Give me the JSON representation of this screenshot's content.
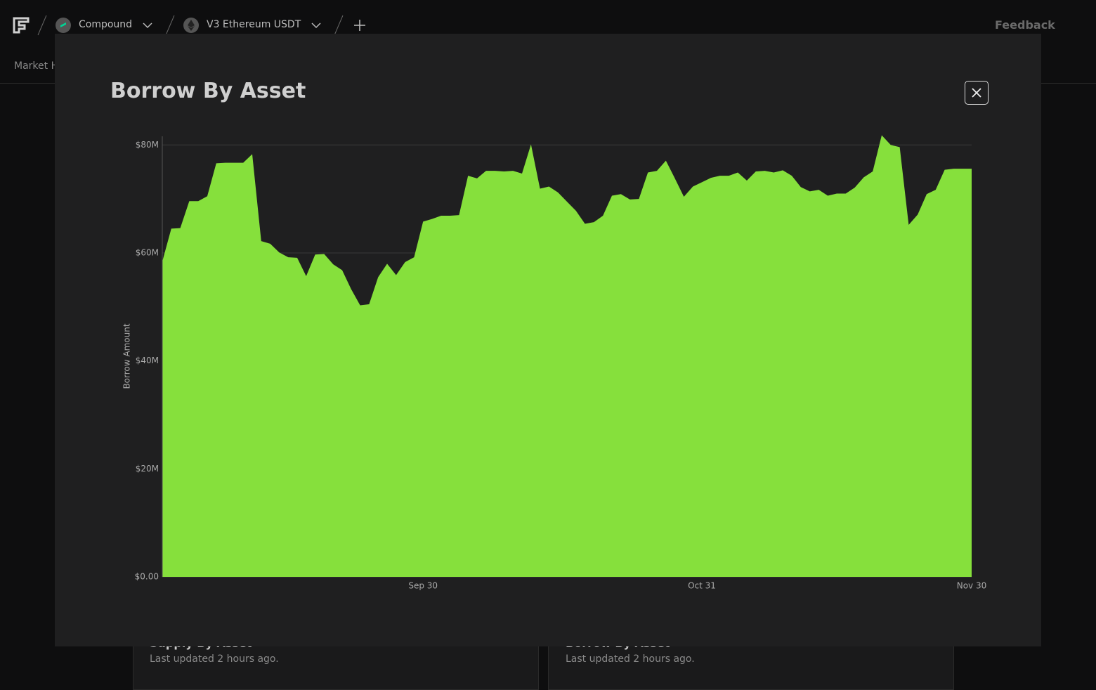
{
  "nav": {
    "protocol": "Compound",
    "market": "V3 Ethereum USDT",
    "feedback": "Feedback",
    "tab": "Market History"
  },
  "cards": [
    {
      "title": "Supply By Asset",
      "updated": "Last updated 2 hours ago."
    },
    {
      "title": "Borrow By Asset",
      "updated": "Last updated 2 hours ago."
    }
  ],
  "modal": {
    "title": "Borrow By Asset"
  },
  "chart_data": {
    "type": "area",
    "y_label": "Borrow Amount",
    "categories": [
      null,
      null,
      null,
      null,
      null,
      null,
      null,
      null,
      null,
      null,
      null,
      null,
      null,
      null,
      null,
      null,
      null,
      null,
      null,
      null,
      null,
      null,
      null,
      null,
      null,
      null,
      null,
      null,
      null,
      "Sep 30",
      null,
      null,
      null,
      null,
      null,
      null,
      null,
      null,
      null,
      null,
      null,
      null,
      null,
      null,
      null,
      null,
      null,
      null,
      null,
      null,
      null,
      null,
      null,
      null,
      null,
      null,
      null,
      null,
      null,
      null,
      "Oct 31",
      null,
      null,
      null,
      null,
      null,
      null,
      null,
      null,
      null,
      null,
      null,
      null,
      null,
      null,
      null,
      null,
      null,
      null,
      null,
      null,
      null,
      null,
      null,
      null,
      null,
      null,
      null,
      null,
      null,
      "Nov 30"
    ],
    "values": [
      58400000,
      64500000,
      64600000,
      69600000,
      69600000,
      70500000,
      76600000,
      76700000,
      76700000,
      76700000,
      78300000,
      62200000,
      61700000,
      60100000,
      59200000,
      59100000,
      55700000,
      59700000,
      59800000,
      57900000,
      56800000,
      53300000,
      50300000,
      50500000,
      55500000,
      58000000,
      55900000,
      58300000,
      59200000,
      65800000,
      66300000,
      66900000,
      66900000,
      67000000,
      74300000,
      73800000,
      75200000,
      75200000,
      75100000,
      75200000,
      74700000,
      80100000,
      71900000,
      72300000,
      71200000,
      69500000,
      67800000,
      65400000,
      65700000,
      66900000,
      70600000,
      70900000,
      69900000,
      70000000,
      74900000,
      75200000,
      77100000,
      73800000,
      70400000,
      72300000,
      73100000,
      73900000,
      74300000,
      74300000,
      74900000,
      73400000,
      75100000,
      75200000,
      74900000,
      75300000,
      74300000,
      72200000,
      71400000,
      71700000,
      70600000,
      71000000,
      71000000,
      72100000,
      74000000,
      75100000,
      81800000,
      80000000,
      79600000,
      65200000,
      67100000,
      70900000,
      71700000,
      75400000,
      75600000,
      75600000,
      75600000
    ],
    "color": "#86e03c",
    "ylim": [
      0,
      81600000
    ],
    "yticks": [
      {
        "value": 0,
        "label": "$0.00"
      },
      {
        "value": 20000000,
        "label": "$20M"
      },
      {
        "value": 40000000,
        "label": "$40M"
      },
      {
        "value": 60000000,
        "label": "$60M"
      },
      {
        "value": 80000000,
        "label": "$80M"
      }
    ],
    "grid": true
  }
}
